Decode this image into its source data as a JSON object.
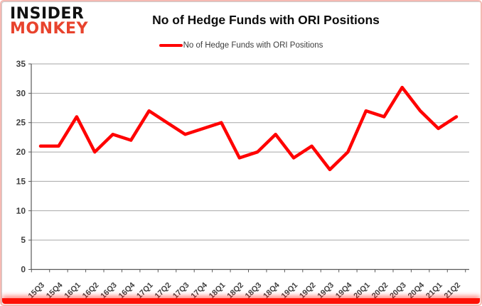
{
  "header": {
    "logo_line1": "INSIDER",
    "logo_line2": "MONKEY",
    "title": "No of Hedge Funds with ORI Positions",
    "legend_label": "No of Hedge Funds with ORI Positions"
  },
  "colors": {
    "line": "#ff0000",
    "logo_accent": "#e8432d",
    "axis": "#595959",
    "grid": "#a6a6a6",
    "tick_text": "#3f3f3f",
    "frame_border": "#f5b9b2",
    "bottom_bar": "#fd1106"
  },
  "chart_data": {
    "type": "line",
    "title": "No of Hedge Funds with ORI Positions",
    "categories": [
      "15Q3",
      "15Q4",
      "16Q1",
      "16Q2",
      "16Q3",
      "16Q4",
      "17Q1",
      "17Q2",
      "17Q3",
      "17Q4",
      "18Q1",
      "18Q2",
      "18Q3",
      "18Q4",
      "19Q1",
      "19Q2",
      "19Q3",
      "19Q4",
      "20Q1",
      "20Q2",
      "20Q3",
      "20Q4",
      "21Q1",
      "21Q2"
    ],
    "series": [
      {
        "name": "No of Hedge Funds with ORI Positions",
        "values": [
          21,
          21,
          26,
          20,
          23,
          22,
          27,
          25,
          23,
          24,
          25,
          19,
          20,
          23,
          19,
          21,
          17,
          20,
          27,
          26,
          31,
          27,
          24,
          26
        ]
      }
    ],
    "xlabel": "",
    "ylabel": "",
    "ylim": [
      0,
      35
    ],
    "yticks": [
      0,
      5,
      10,
      15,
      20,
      25,
      30,
      35
    ],
    "grid": true,
    "legend_position": "top"
  }
}
